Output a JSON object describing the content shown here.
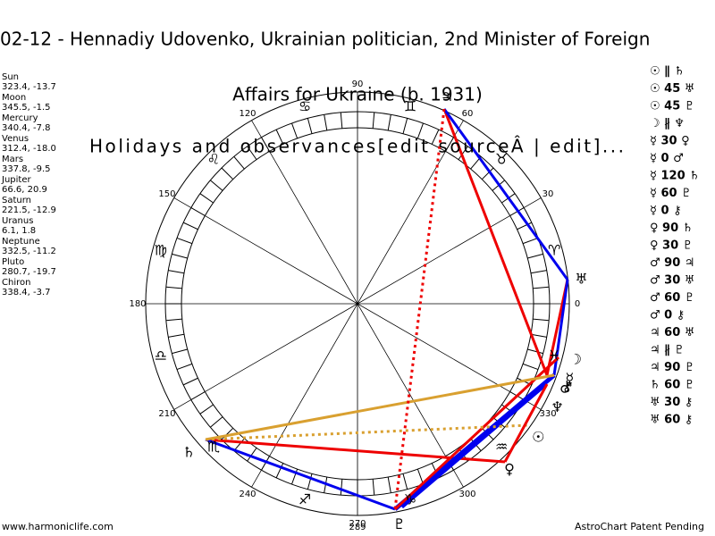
{
  "header": {
    "title": "02-12 - Hennadiy Udovenko, Ukrainian politician, 2nd Minister of Foreign",
    "overlay_1": "Affairs for Ukraine (b. 1931)",
    "overlay_2": "Holidays and observances[edit sourceÂ | edit]..."
  },
  "planets": [
    {
      "name": "Sun",
      "position": "323.4, -13.7",
      "glyph": "☉"
    },
    {
      "name": "Moon",
      "position": "345.5, -1.5",
      "glyph": "☽"
    },
    {
      "name": "Mercury",
      "position": "340.4, -7.8",
      "glyph": "☿"
    },
    {
      "name": "Venus",
      "position": "312.4, -18.0",
      "glyph": "♀"
    },
    {
      "name": "Mars",
      "position": "337.8, -9.5",
      "glyph": "♂"
    },
    {
      "name": "Jupiter",
      "position": "66.6, 20.9",
      "glyph": "♃"
    },
    {
      "name": "Saturn",
      "position": "221.5, -12.9",
      "glyph": "♄"
    },
    {
      "name": "Uranus",
      "position": "6.1, 1.8",
      "glyph": "♅"
    },
    {
      "name": "Neptune",
      "position": "332.5, -11.2",
      "glyph": "♆"
    },
    {
      "name": "Pluto",
      "position": "280.7, -19.7",
      "glyph": "♇"
    },
    {
      "name": "Chiron",
      "position": "338.4, -3.7",
      "glyph": "⚷"
    }
  ],
  "wheel": {
    "degrees": [
      0,
      30,
      60,
      90,
      120,
      150,
      180,
      210,
      240,
      270,
      300,
      330
    ],
    "signs": [
      "♈",
      "♉",
      "♊",
      "♋",
      "♌",
      "♍",
      "♎",
      "♏",
      "♐",
      "♑",
      "♒",
      "♓"
    ],
    "bottom_label": "289"
  },
  "aspects": [
    "☉ ∥ ♄",
    "☉ 45 ♅",
    "☉ 45 ♇",
    "☽ ∦ ♆",
    "☿ 30 ♀",
    "☿ 0 ♂",
    "☿ 120 ♄",
    "☿ 60 ♇",
    "☿ 0 ⚷",
    "♀ 90 ♄",
    "♀ 30 ♇",
    "♂ 90 ♃",
    "♂ 30 ♅",
    "♂ 60 ♇",
    "♂ 0 ⚷",
    "♃ 60 ♅",
    "♃ ∦ ♇",
    "♃ 90 ♇",
    "♄ 60 ♇",
    "♅ 30 ⚷",
    "♅ 60 ⚷"
  ],
  "footer": {
    "left": "www.harmoniclife.com",
    "right": "AstroChart Patent Pending"
  }
}
